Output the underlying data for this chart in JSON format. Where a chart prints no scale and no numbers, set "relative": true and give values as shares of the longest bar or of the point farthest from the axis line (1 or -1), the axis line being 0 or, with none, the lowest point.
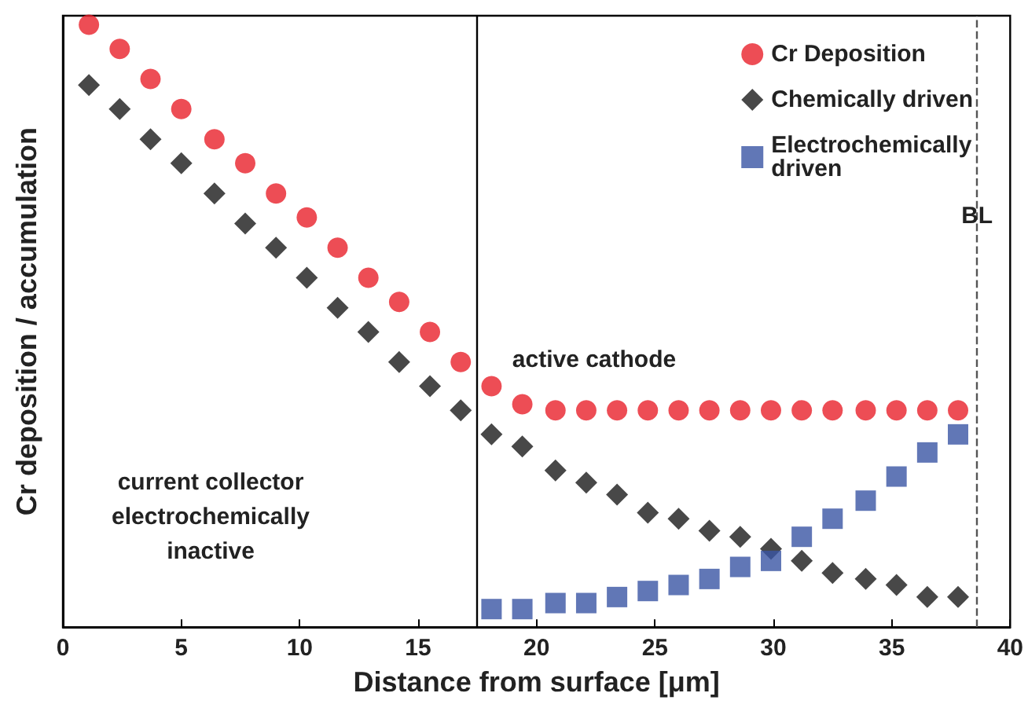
{
  "chart_data": {
    "type": "scatter",
    "xlabel": "Distance from surface [μm]",
    "ylabel": "Cr deposition / accumulation",
    "relative": true,
    "xlim": [
      0,
      40
    ],
    "xticks": [
      0,
      5,
      10,
      15,
      20,
      25,
      30,
      35,
      40
    ],
    "grid": false,
    "legend": "top right",
    "series": [
      {
        "name": "Cr Deposition",
        "color": "#e8202a",
        "marker": "circle",
        "x": [
          1.1,
          2.4,
          3.7,
          5.0,
          6.4,
          7.7,
          9.0,
          10.3,
          11.6,
          12.9,
          14.2,
          15.5,
          16.8,
          18.1,
          19.4,
          20.8,
          22.1,
          23.4,
          24.7,
          26.0,
          27.3,
          28.6,
          29.9,
          31.2,
          32.5,
          33.9,
          35.2,
          36.5,
          37.8
        ],
        "values": [
          1.0,
          0.96,
          0.91,
          0.86,
          0.81,
          0.77,
          0.72,
          0.68,
          0.63,
          0.58,
          0.54,
          0.49,
          0.44,
          0.4,
          0.37,
          0.36,
          0.36,
          0.36,
          0.36,
          0.36,
          0.36,
          0.36,
          0.36,
          0.36,
          0.36,
          0.36,
          0.36,
          0.36,
          0.36
        ]
      },
      {
        "name": "Chemically driven",
        "color": "#1a1a1a",
        "marker": "diamond",
        "x": [
          1.1,
          2.4,
          3.7,
          5.0,
          6.4,
          7.7,
          9.0,
          10.3,
          11.6,
          12.9,
          14.2,
          15.5,
          16.8,
          18.1,
          19.4,
          20.8,
          22.1,
          23.4,
          24.7,
          26.0,
          27.3,
          28.6,
          29.9,
          31.2,
          32.5,
          33.9,
          35.2,
          36.5,
          37.8
        ],
        "values": [
          0.9,
          0.86,
          0.81,
          0.77,
          0.72,
          0.67,
          0.63,
          0.58,
          0.53,
          0.49,
          0.44,
          0.4,
          0.36,
          0.32,
          0.3,
          0.26,
          0.24,
          0.22,
          0.19,
          0.18,
          0.16,
          0.15,
          0.13,
          0.11,
          0.09,
          0.08,
          0.07,
          0.05,
          0.05
        ]
      },
      {
        "name": "Electrochemically\ndriven",
        "color": "#3a55a4",
        "marker": "square",
        "x": [
          18.1,
          19.4,
          20.8,
          22.1,
          23.4,
          24.7,
          26.0,
          27.3,
          28.6,
          29.9,
          31.2,
          32.5,
          33.9,
          35.2,
          36.5,
          37.8
        ],
        "values": [
          0.03,
          0.03,
          0.04,
          0.04,
          0.05,
          0.06,
          0.07,
          0.08,
          0.1,
          0.11,
          0.15,
          0.18,
          0.21,
          0.25,
          0.29,
          0.32
        ]
      }
    ],
    "ref_lines": [
      {
        "axis": "x",
        "value": 17.5,
        "label": null,
        "color": "#000000",
        "line_style": "solid"
      },
      {
        "axis": "x",
        "value": 38.6,
        "label": "BL",
        "color": "#555555",
        "line_style": "dashed"
      }
    ],
    "annotations": [
      "active cathode",
      "current collector\nelectrochemically\ninactive"
    ]
  }
}
